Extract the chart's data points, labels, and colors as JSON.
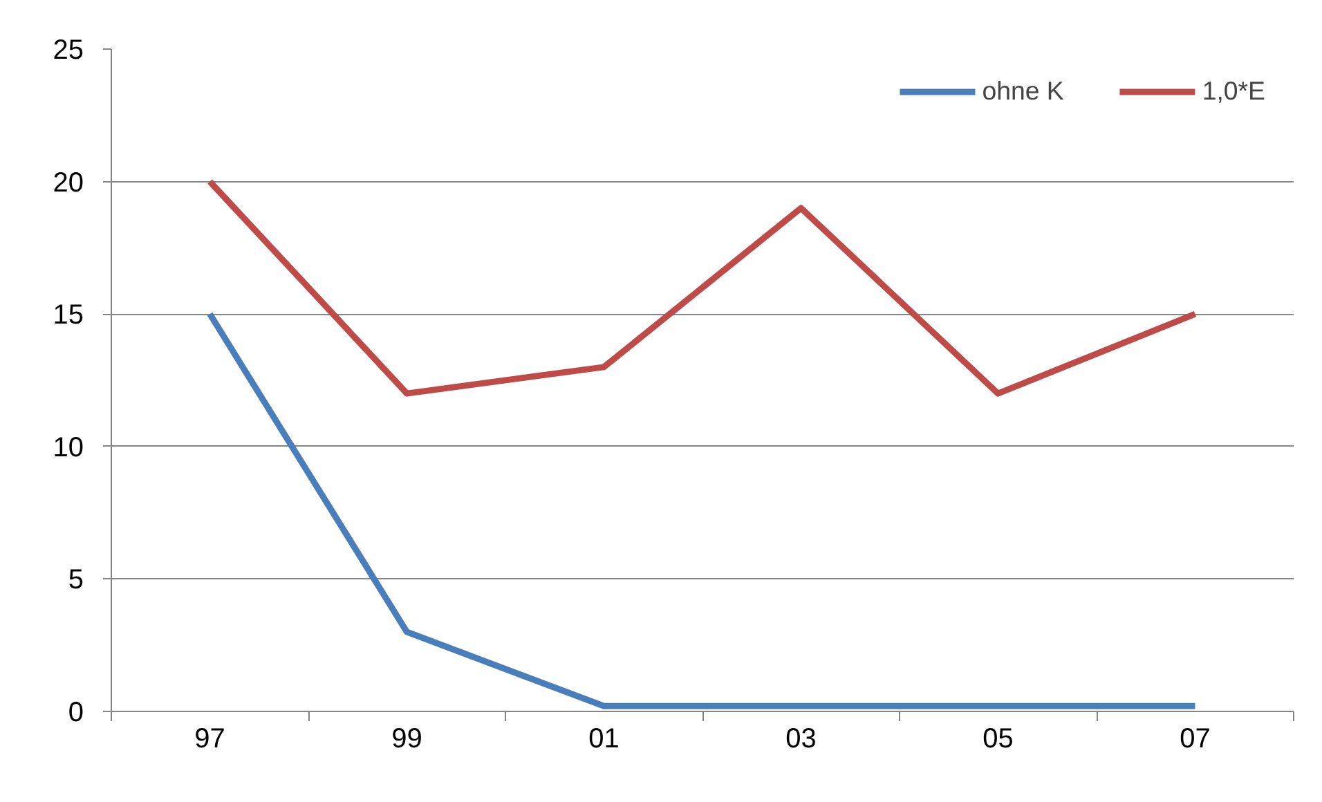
{
  "chart_data": {
    "type": "line",
    "categories": [
      "97",
      "99",
      "01",
      "03",
      "05",
      "07"
    ],
    "series": [
      {
        "name": "ohne K",
        "color": "#4a7ebb",
        "values": [
          15,
          3,
          0.2,
          0.2,
          0.2,
          0.2
        ]
      },
      {
        "name": "1,0*E",
        "color": "#be4b48",
        "values": [
          20,
          12,
          13,
          19,
          12,
          15
        ]
      }
    ],
    "ylim": [
      0,
      25
    ],
    "yticks": [
      0,
      5,
      10,
      15,
      20,
      25
    ],
    "grid": "y",
    "legend": "top right",
    "marker": "none",
    "line_style": "solid"
  }
}
